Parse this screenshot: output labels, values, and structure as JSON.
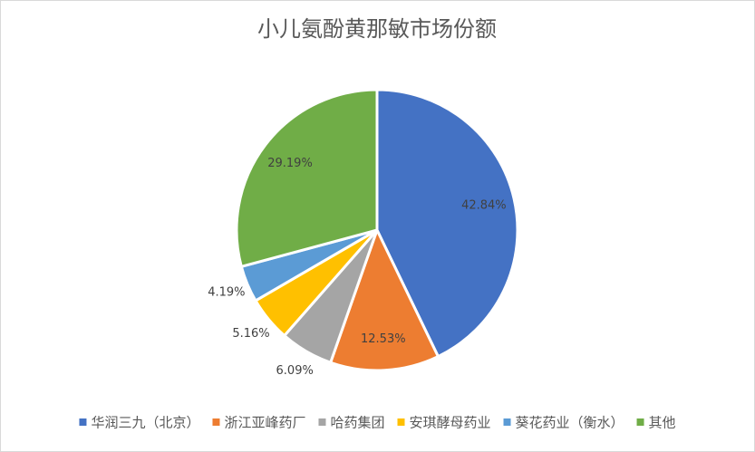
{
  "chart_data": {
    "type": "pie",
    "title": "小儿氨酚黄那敏市场份额",
    "categories": [
      "华润三九（北京）",
      "浙江亚峰药厂",
      "哈药集团",
      "安琪酵母药业",
      "葵花药业（衡水）",
      "其他"
    ],
    "values": [
      42.84,
      12.53,
      6.09,
      5.16,
      4.19,
      29.19
    ],
    "value_labels": [
      "42.84%",
      "12.53%",
      "6.09%",
      "5.16%",
      "4.19%",
      "29.19%"
    ],
    "colors": [
      "#4472c4",
      "#ed7d31",
      "#a5a5a5",
      "#ffc000",
      "#5b9bd5",
      "#70ad47"
    ],
    "legend": "bottom"
  }
}
